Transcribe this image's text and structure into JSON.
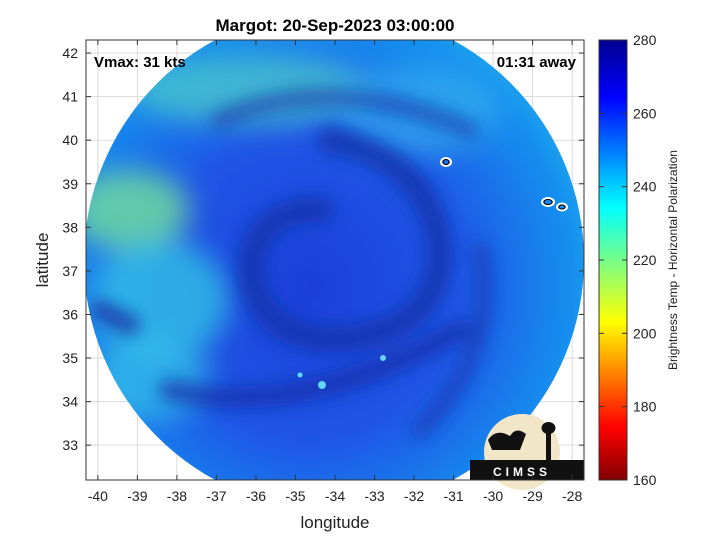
{
  "chart_data": {
    "type": "heatmap",
    "title": "Margot: 20-Sep-2023 03:00:00",
    "xlabel": "longitude",
    "ylabel": "latitude",
    "xlim": [
      -40.3,
      -27.7
    ],
    "ylim": [
      32.2,
      42.3
    ],
    "xticks": [
      -40,
      -39,
      -38,
      -37,
      -36,
      -35,
      -34,
      -33,
      -32,
      -31,
      -30,
      -29,
      -28
    ],
    "yticks": [
      33,
      34,
      35,
      36,
      37,
      38,
      39,
      40,
      41,
      42
    ],
    "grid": true,
    "annotations": {
      "vmax": "Vmax: 31 kts",
      "time_offset": "01:31 away"
    },
    "colorbar": {
      "label": "Brightness Temp - Horizontal Polarization",
      "range": [
        160,
        280
      ],
      "ticks": [
        160,
        180,
        200,
        220,
        240,
        260,
        280
      ],
      "colormap": "jet"
    },
    "swath": {
      "center": [
        -34.0,
        37.2
      ],
      "description_field_min": 220,
      "field_max": 275
    },
    "logo_text": "CIMSS"
  }
}
